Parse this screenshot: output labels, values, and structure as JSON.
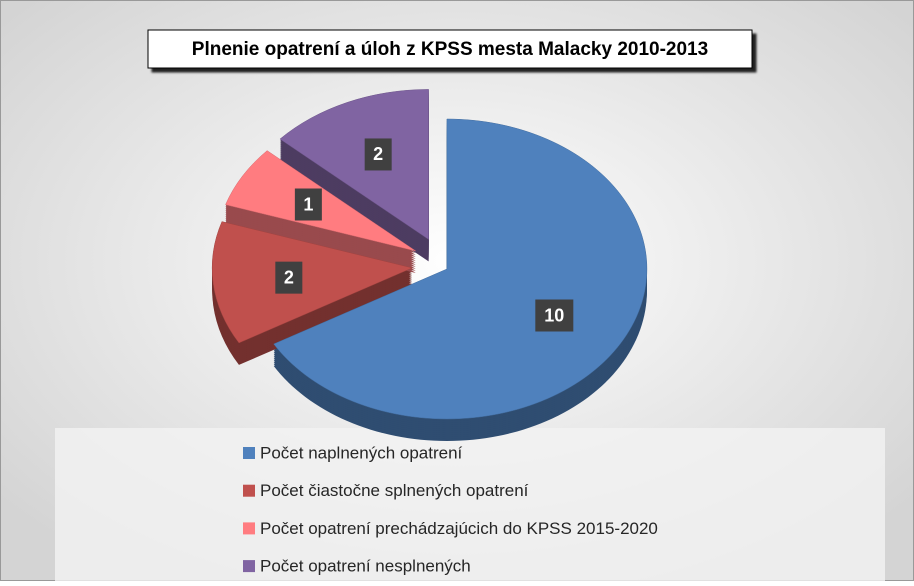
{
  "chart_data": {
    "type": "pie",
    "title": "Plnenie opatrení a úloh z KPSS mesta Malacky 2010-2013",
    "categories": [
      "Počet naplnených opatrení",
      "Počet čiastočne splnených opatrení",
      "Počet opatrení prechádzajúcich do KPSS 2015-2020",
      "Počet opatrení nesplnených"
    ],
    "values": [
      10,
      2,
      1,
      2
    ],
    "colors": [
      "#4f81bd",
      "#c0504d",
      "#ff7c80",
      "#8064a2"
    ],
    "legend": "bottom"
  }
}
